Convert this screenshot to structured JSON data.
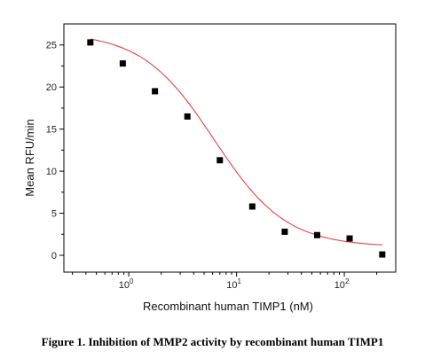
{
  "caption": "Figure 1. Inhibition of MMP2 activity by recombinant human TIMP1",
  "chart_data": {
    "type": "scatter",
    "xlabel": "Recombinant human TIMP1 (nM)",
    "ylabel": "Mean RFU/min",
    "x_scale": "log",
    "xlim": [
      0.25,
      300
    ],
    "ylim": [
      -2,
      27.5
    ],
    "x_ticks": [
      {
        "value": 1,
        "base": "10",
        "exp": "0"
      },
      {
        "value": 10,
        "base": "10",
        "exp": "1"
      },
      {
        "value": 100,
        "base": "10",
        "exp": "2"
      }
    ],
    "y_ticks": [
      0,
      5,
      10,
      15,
      20,
      25
    ],
    "series": [
      {
        "kind": "points",
        "color": "#000000",
        "x": [
          0.44,
          0.88,
          1.75,
          3.5,
          7.0,
          14.0,
          28.0,
          56.0,
          112.0,
          225.0
        ],
        "y": [
          25.3,
          22.8,
          19.5,
          16.5,
          11.3,
          5.8,
          2.8,
          2.4,
          2.0,
          0.1
        ]
      },
      {
        "kind": "fit",
        "color": "#e8413c",
        "model": "4PL",
        "bottom": 1.0,
        "top": 26.5,
        "ec50": 6.2,
        "hill": 1.3
      }
    ]
  }
}
